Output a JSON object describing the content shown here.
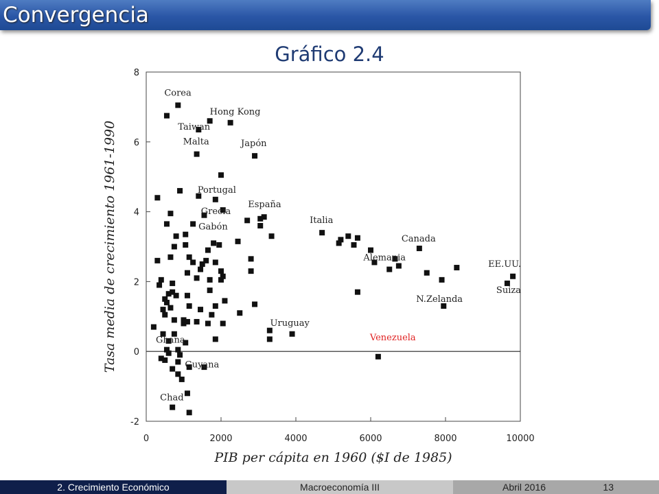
{
  "slide": {
    "title": "Convergencia",
    "subtitle": "Gráfico 2.4"
  },
  "footer": {
    "section": "2. Crecimiento Económico",
    "course": "Macroeconomía III",
    "date": "Abril 2016",
    "page": "13"
  },
  "chart_data": {
    "type": "scatter",
    "title": "",
    "xlabel": "PIB per cápita en 1960 ($I de 1985)",
    "ylabel": "Tasa media de crecimiento 1961-1990",
    "xlim": [
      0,
      10000
    ],
    "ylim": [
      -2,
      8
    ],
    "xticks": [
      "0",
      "2000",
      "4000",
      "6000",
      "8000",
      "10000"
    ],
    "yticks": [
      "-2",
      "0",
      "2",
      "4",
      "6",
      "8"
    ],
    "reference_line_y": 0,
    "grid": false,
    "highlight_color": "#e02020",
    "points": [
      [
        850,
        7.05
      ],
      [
        550,
        6.75
      ],
      [
        1700,
        6.6
      ],
      [
        2250,
        6.55
      ],
      [
        1400,
        6.35
      ],
      [
        2900,
        5.6
      ],
      [
        1350,
        5.65
      ],
      [
        2000,
        5.05
      ],
      [
        300,
        4.4
      ],
      [
        900,
        4.6
      ],
      [
        1400,
        4.45
      ],
      [
        1850,
        4.35
      ],
      [
        650,
        3.95
      ],
      [
        1250,
        3.65
      ],
      [
        550,
        3.65
      ],
      [
        1550,
        3.9
      ],
      [
        2050,
        4.05
      ],
      [
        3050,
        3.8
      ],
      [
        3150,
        3.85
      ],
      [
        2700,
        3.75
      ],
      [
        3050,
        3.6
      ],
      [
        2450,
        3.15
      ],
      [
        3350,
        3.3
      ],
      [
        4700,
        3.4
      ],
      [
        5200,
        3.2
      ],
      [
        5400,
        3.3
      ],
      [
        5650,
        3.25
      ],
      [
        5150,
        3.1
      ],
      [
        5550,
        3.05
      ],
      [
        6000,
        2.9
      ],
      [
        7300,
        2.95
      ],
      [
        6650,
        2.65
      ],
      [
        6750,
        2.45
      ],
      [
        6100,
        2.55
      ],
      [
        6500,
        2.35
      ],
      [
        7500,
        2.25
      ],
      [
        8300,
        2.4
      ],
      [
        7900,
        2.05
      ],
      [
        9650,
        1.95
      ],
      [
        9800,
        2.15
      ],
      [
        5650,
        1.7
      ],
      [
        7950,
        1.3
      ],
      [
        800,
        3.3
      ],
      [
        1050,
        3.35
      ],
      [
        1800,
        3.1
      ],
      [
        1050,
        3.05
      ],
      [
        1650,
        2.9
      ],
      [
        1950,
        3.05
      ],
      [
        750,
        3.0
      ],
      [
        1500,
        2.5
      ],
      [
        1450,
        2.35
      ],
      [
        1250,
        2.55
      ],
      [
        1350,
        2.1
      ],
      [
        1150,
        2.7
      ],
      [
        300,
        2.6
      ],
      [
        1700,
        2.05
      ],
      [
        650,
        2.7
      ],
      [
        2000,
        2.3
      ],
      [
        2050,
        2.15
      ],
      [
        1850,
        2.55
      ],
      [
        2000,
        2.05
      ],
      [
        1600,
        2.6
      ],
      [
        1100,
        2.25
      ],
      [
        2800,
        2.65
      ],
      [
        2800,
        2.3
      ],
      [
        400,
        2.05
      ],
      [
        350,
        1.9
      ],
      [
        700,
        1.95
      ],
      [
        500,
        1.5
      ],
      [
        600,
        1.65
      ],
      [
        700,
        1.7
      ],
      [
        800,
        1.6
      ],
      [
        1100,
        1.6
      ],
      [
        450,
        1.2
      ],
      [
        550,
        1.4
      ],
      [
        650,
        1.25
      ],
      [
        500,
        1.05
      ],
      [
        1700,
        1.75
      ],
      [
        2100,
        1.45
      ],
      [
        1850,
        1.3
      ],
      [
        2900,
        1.35
      ],
      [
        2500,
        1.1
      ],
      [
        1150,
        1.3
      ],
      [
        1450,
        1.2
      ],
      [
        1750,
        1.05
      ],
      [
        1650,
        0.8
      ],
      [
        750,
        0.9
      ],
      [
        1000,
        0.8
      ],
      [
        1100,
        0.85
      ],
      [
        1350,
        0.85
      ],
      [
        2050,
        0.8
      ],
      [
        200,
        0.7
      ],
      [
        450,
        0.5
      ],
      [
        750,
        0.5
      ],
      [
        1000,
        0.9
      ],
      [
        3300,
        0.6
      ],
      [
        3900,
        0.5
      ],
      [
        3300,
        0.35
      ],
      [
        1850,
        0.35
      ],
      [
        600,
        0.3
      ],
      [
        1050,
        0.25
      ],
      [
        550,
        0.05
      ],
      [
        850,
        0.05
      ],
      [
        600,
        -0.05
      ],
      [
        900,
        -0.1
      ],
      [
        400,
        -0.2
      ],
      [
        500,
        -0.25
      ],
      [
        850,
        -0.3
      ],
      [
        1150,
        -0.45
      ],
      [
        1550,
        -0.45
      ],
      [
        700,
        -0.5
      ],
      [
        850,
        -0.65
      ],
      [
        950,
        -0.8
      ],
      [
        6200,
        -0.15
      ],
      [
        1100,
        -1.2
      ],
      [
        700,
        -1.6
      ],
      [
        1150,
        -1.75
      ]
    ],
    "annotations": [
      {
        "text": "Corea",
        "x": 850,
        "y": 7.05
      },
      {
        "text": "Hong Kong",
        "x": 2250,
        "y": 6.55
      },
      {
        "text": "Taiwan",
        "x": 1400,
        "y": 6.35
      },
      {
        "text": "Malta",
        "x": 1350,
        "y": 5.65
      },
      {
        "text": "Japón",
        "x": 2900,
        "y": 5.6
      },
      {
        "text": "Portugal",
        "x": 1850,
        "y": 4.35
      },
      {
        "text": "Grecia",
        "x": 2050,
        "y": 4.05
      },
      {
        "text": "España",
        "x": 3050,
        "y": 3.85
      },
      {
        "text": "Italia",
        "x": 4700,
        "y": 3.4
      },
      {
        "text": "Gabón",
        "x": 1800,
        "y": 3.1
      },
      {
        "text": "Canada",
        "x": 7300,
        "y": 2.95
      },
      {
        "text": "Alemania",
        "x": 6650,
        "y": 2.65
      },
      {
        "text": "EE.UU.",
        "x": 9800,
        "y": 2.15
      },
      {
        "text": "Suiza",
        "x": 9650,
        "y": 1.95
      },
      {
        "text": "N.Zelanda",
        "x": 7950,
        "y": 1.3
      },
      {
        "text": "Uruguay",
        "x": 3900,
        "y": 0.5
      },
      {
        "text": "Venezuela",
        "x": 6200,
        "y": -0.15,
        "highlight": true
      },
      {
        "text": "Ghana",
        "x": 550,
        "y": 0.05
      },
      {
        "text": "Guyana",
        "x": 850,
        "y": -0.3
      },
      {
        "text": "Chad",
        "x": 700,
        "y": -1.6
      }
    ]
  }
}
